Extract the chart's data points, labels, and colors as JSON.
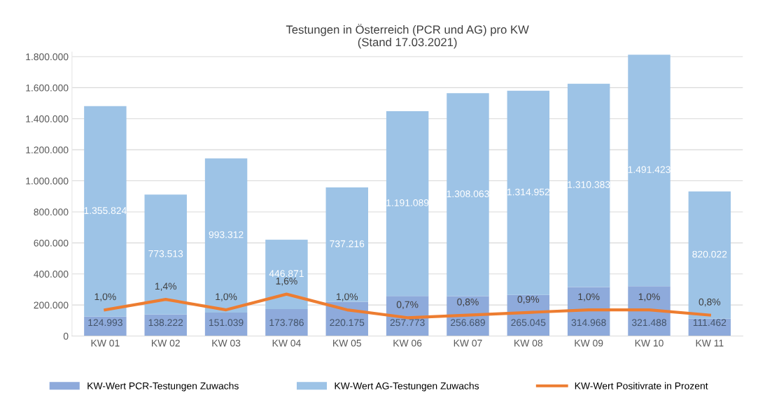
{
  "chart_data": {
    "type": "bar",
    "title": "Testungen in Österreich (PCR und AG) pro KW\n(Stand 17.03.2021)",
    "categories": [
      "KW 01",
      "KW 02",
      "KW 03",
      "KW 04",
      "KW 05",
      "KW 06",
      "KW 07",
      "KW 08",
      "KW 09",
      "KW 10",
      "KW 11"
    ],
    "stacked": true,
    "series": [
      {
        "name": "KW-Wert PCR-Testungen Zuwachs",
        "color": "#8eaadb",
        "values": [
          124993,
          138222,
          151039,
          173786,
          220175,
          257773,
          256689,
          265045,
          314968,
          321488,
          111462
        ],
        "value_labels": [
          "124.993",
          "138.222",
          "151.039",
          "173.786",
          "220.175",
          "257.773",
          "256.689",
          "265.045",
          "314.968",
          "321.488",
          "111.462"
        ]
      },
      {
        "name": "KW-Wert AG-Testungen Zuwachs",
        "color": "#9dc3e6",
        "values": [
          1355824,
          773513,
          993312,
          446871,
          737216,
          1191089,
          1308063,
          1314952,
          1310383,
          1491423,
          820022
        ],
        "value_labels": [
          "1.355.824",
          "773.513",
          "993.312",
          "446.871",
          "737.216",
          "1.191.089",
          "1.308.063",
          "1.314.952",
          "1.310.383",
          "1.491.423",
          "820.022"
        ]
      },
      {
        "name": "KW-Wert Positivrate in Prozent",
        "type": "line",
        "axis": "y2",
        "color": "#ed7d31",
        "values": [
          1.0,
          1.4,
          1.0,
          1.6,
          1.0,
          0.7,
          0.8,
          0.9,
          1.0,
          1.0,
          0.8
        ],
        "value_labels": [
          "1,0%",
          "1,4%",
          "1,0%",
          "1,6%",
          "1,0%",
          "0,7%",
          "0,8%",
          "0,9%",
          "1,0%",
          "1,0%",
          "0,8%"
        ]
      }
    ],
    "ylim": [
      0,
      1830000
    ],
    "yticks": [
      0,
      {
        "value": 200000,
        "label": "200.000"
      },
      {
        "value": 400000,
        "label": "400.000"
      },
      {
        "value": 600000,
        "label": "600.000"
      },
      {
        "value": 800000,
        "label": "800.000"
      },
      {
        "value": 1000000,
        "label": "1.000.000"
      },
      {
        "value": 1200000,
        "label": "1.200.000"
      },
      {
        "value": 1400000,
        "label": "1.400.000"
      },
      {
        "value": 1600000,
        "label": "1.600.000"
      },
      {
        "value": 1800000,
        "label": "1.800.000"
      }
    ],
    "grid": "y",
    "legend": "bottom",
    "marker": "none"
  }
}
